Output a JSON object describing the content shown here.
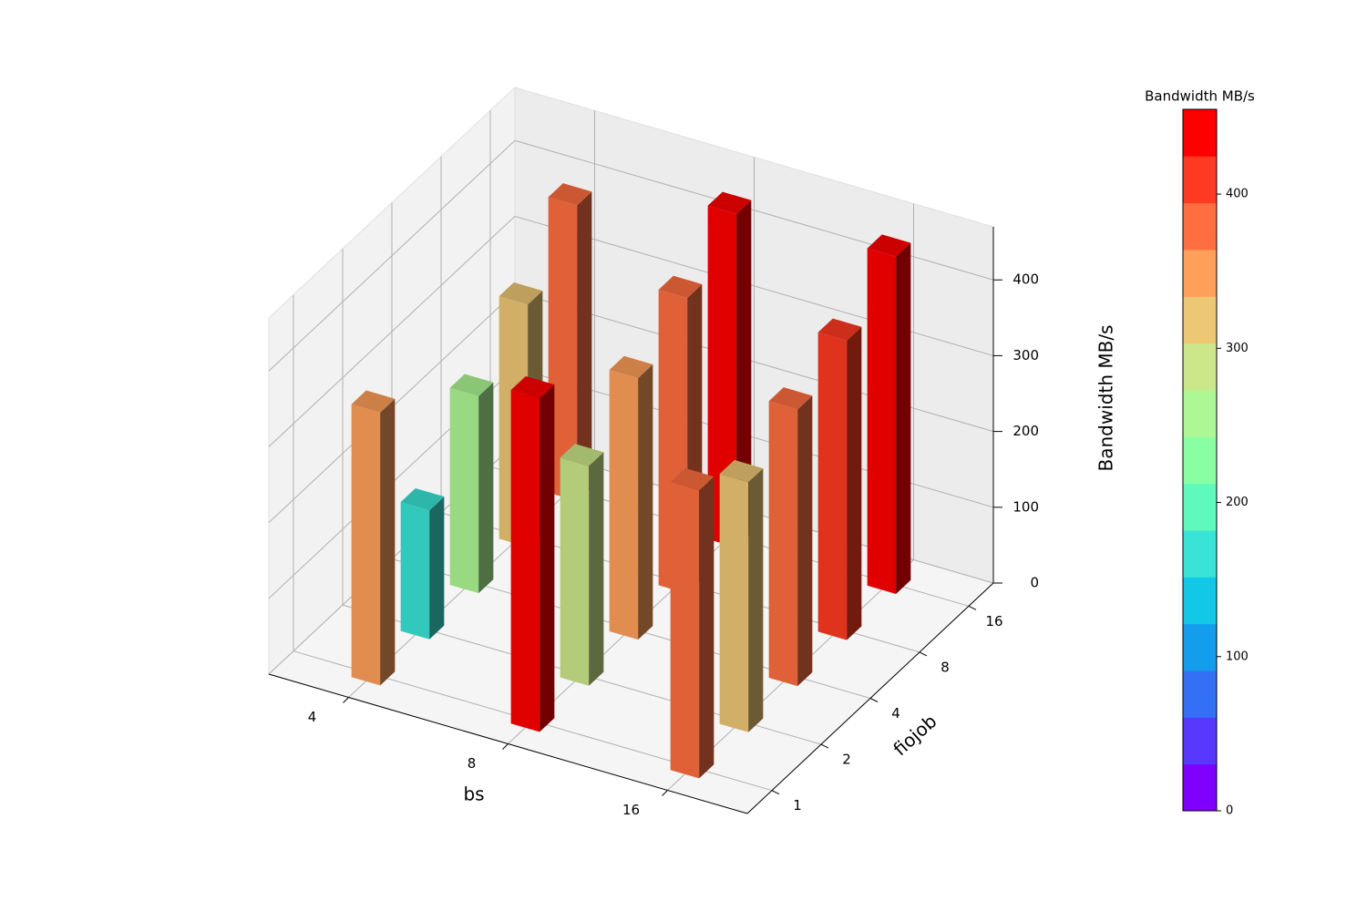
{
  "chart_data": {
    "type": "bar3d",
    "xlabel": "bs",
    "ylabel": "fiojob",
    "zlabel": "Bandwidth MB/s",
    "x_categories": [
      "4",
      "8",
      "16"
    ],
    "y_categories": [
      "1",
      "2",
      "4",
      "8",
      "16"
    ],
    "values": [
      [
        360,
        170,
        260,
        320,
        390
      ],
      [
        440,
        290,
        345,
        390,
        440
      ],
      [
        380,
        330,
        365,
        395,
        445
      ]
    ],
    "zlim": [
      0,
      470
    ],
    "zticks": [
      0,
      100,
      200,
      300,
      400
    ],
    "grid": true,
    "colorbar": {
      "title": "Bandwidth MB/s",
      "lim": [
        0,
        455
      ],
      "ticks": [
        0,
        100,
        200,
        300,
        400
      ],
      "colors": [
        "#7f00ff",
        "#5838fc",
        "#3470f6",
        "#149ded",
        "#12c8e6",
        "#39e4d6",
        "#5ff9bb",
        "#8afea2",
        "#adf794",
        "#cce78a",
        "#eec774",
        "#ffa05a",
        "#ff6e40",
        "#ff3a22",
        "#ff0000"
      ]
    }
  }
}
